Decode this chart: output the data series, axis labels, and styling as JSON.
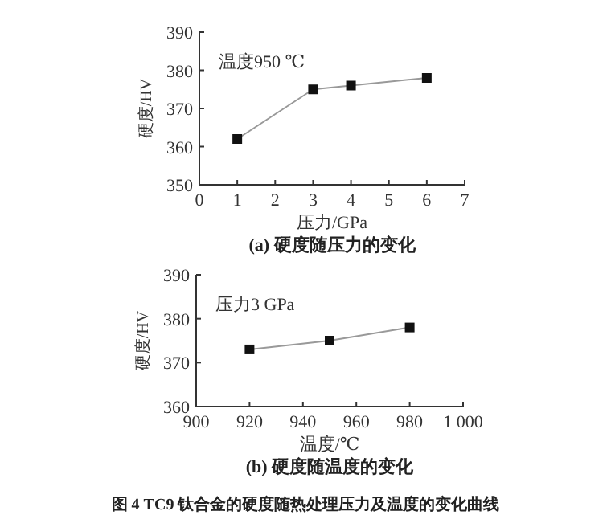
{
  "chart_data": [
    {
      "type": "line",
      "title": "(a) 硬度随压力的变化",
      "xlabel": "压力/GPa",
      "ylabel": "硬度/HV",
      "annotations": [
        "温度950 ℃"
      ],
      "x": [
        1,
        3,
        4,
        6
      ],
      "series": [
        {
          "color": "#999999",
          "values": [
            362,
            375,
            376,
            378
          ]
        }
      ],
      "xlim": [
        0,
        7
      ],
      "xticks": [
        0,
        1,
        2,
        3,
        4,
        5,
        6,
        7
      ],
      "ylim": [
        350,
        390
      ],
      "yticks": [
        350,
        360,
        370,
        380,
        390
      ],
      "marker": "square",
      "line_style": "solid"
    },
    {
      "type": "line",
      "title": "(b) 硬度随温度的变化",
      "xlabel": "温度/℃",
      "ylabel": "硬度/HV",
      "annotations": [
        "压力3 GPa",
        "图 4  TC9 钛合金的硬度随热处理压力及温度的变化曲线"
      ],
      "x": [
        920,
        950,
        980
      ],
      "series": [
        {
          "color": "#999999",
          "values": [
            373,
            375,
            378
          ]
        }
      ],
      "xlim": [
        900,
        1000
      ],
      "xticks": [
        900,
        920,
        940,
        960,
        980,
        {
          "value": 1000,
          "label": "1 000"
        }
      ],
      "ylim": [
        360,
        390
      ],
      "yticks": [
        360,
        370,
        380,
        390
      ],
      "marker": "square",
      "line_style": "solid"
    }
  ]
}
